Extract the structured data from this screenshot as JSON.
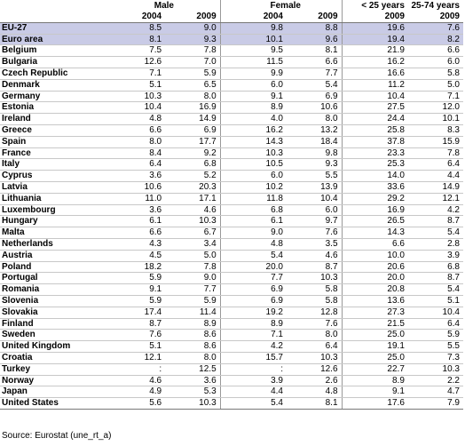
{
  "header": {
    "groups": [
      "Male",
      "Female",
      "< 25 years",
      "25-74 years"
    ],
    "years": [
      "2004",
      "2009",
      "2004",
      "2009",
      "2009",
      "2009"
    ]
  },
  "rows": [
    {
      "country": "EU-27",
      "m2004": "8.5",
      "m2009": "9.0",
      "f2004": "9.8",
      "f2009": "8.8",
      "y25": "19.6",
      "y2574": "7.6"
    },
    {
      "country": "Euro area",
      "m2004": "8.1",
      "m2009": "9.3",
      "f2004": "10.1",
      "f2009": "9.6",
      "y25": "19.4",
      "y2574": "8.2"
    },
    {
      "country": "Belgium",
      "m2004": "7.5",
      "m2009": "7.8",
      "f2004": "9.5",
      "f2009": "8.1",
      "y25": "21.9",
      "y2574": "6.6"
    },
    {
      "country": "Bulgaria",
      "m2004": "12.6",
      "m2009": "7.0",
      "f2004": "11.5",
      "f2009": "6.6",
      "y25": "16.2",
      "y2574": "6.0"
    },
    {
      "country": "Czech Republic",
      "m2004": "7.1",
      "m2009": "5.9",
      "f2004": "9.9",
      "f2009": "7.7",
      "y25": "16.6",
      "y2574": "5.8"
    },
    {
      "country": "Denmark",
      "m2004": "5.1",
      "m2009": "6.5",
      "f2004": "6.0",
      "f2009": "5.4",
      "y25": "11.2",
      "y2574": "5.0"
    },
    {
      "country": "Germany",
      "m2004": "10.3",
      "m2009": "8.0",
      "f2004": "9.1",
      "f2009": "6.9",
      "y25": "10.4",
      "y2574": "7.1"
    },
    {
      "country": "Estonia",
      "m2004": "10.4",
      "m2009": "16.9",
      "f2004": "8.9",
      "f2009": "10.6",
      "y25": "27.5",
      "y2574": "12.0"
    },
    {
      "country": "Ireland",
      "m2004": "4.8",
      "m2009": "14.9",
      "f2004": "4.0",
      "f2009": "8.0",
      "y25": "24.4",
      "y2574": "10.1"
    },
    {
      "country": "Greece",
      "m2004": "6.6",
      "m2009": "6.9",
      "f2004": "16.2",
      "f2009": "13.2",
      "y25": "25.8",
      "y2574": "8.3"
    },
    {
      "country": "Spain",
      "m2004": "8.0",
      "m2009": "17.7",
      "f2004": "14.3",
      "f2009": "18.4",
      "y25": "37.8",
      "y2574": "15.9"
    },
    {
      "country": "France",
      "m2004": "8.4",
      "m2009": "9.2",
      "f2004": "10.3",
      "f2009": "9.8",
      "y25": "23.3",
      "y2574": "7.8"
    },
    {
      "country": "Italy",
      "m2004": "6.4",
      "m2009": "6.8",
      "f2004": "10.5",
      "f2009": "9.3",
      "y25": "25.3",
      "y2574": "6.4"
    },
    {
      "country": "Cyprus",
      "m2004": "3.6",
      "m2009": "5.2",
      "f2004": "6.0",
      "f2009": "5.5",
      "y25": "14.0",
      "y2574": "4.4"
    },
    {
      "country": "Latvia",
      "m2004": "10.6",
      "m2009": "20.3",
      "f2004": "10.2",
      "f2009": "13.9",
      "y25": "33.6",
      "y2574": "14.9"
    },
    {
      "country": "Lithuania",
      "m2004": "11.0",
      "m2009": "17.1",
      "f2004": "11.8",
      "f2009": "10.4",
      "y25": "29.2",
      "y2574": "12.1"
    },
    {
      "country": "Luxembourg",
      "m2004": "3.6",
      "m2009": "4.6",
      "f2004": "6.8",
      "f2009": "6.0",
      "y25": "16.9",
      "y2574": "4.2"
    },
    {
      "country": "Hungary",
      "m2004": "6.1",
      "m2009": "10.3",
      "f2004": "6.1",
      "f2009": "9.7",
      "y25": "26.5",
      "y2574": "8.7"
    },
    {
      "country": "Malta",
      "m2004": "6.6",
      "m2009": "6.7",
      "f2004": "9.0",
      "f2009": "7.6",
      "y25": "14.3",
      "y2574": "5.4"
    },
    {
      "country": "Netherlands",
      "m2004": "4.3",
      "m2009": "3.4",
      "f2004": "4.8",
      "f2009": "3.5",
      "y25": "6.6",
      "y2574": "2.8"
    },
    {
      "country": "Austria",
      "m2004": "4.5",
      "m2009": "5.0",
      "f2004": "5.4",
      "f2009": "4.6",
      "y25": "10.0",
      "y2574": "3.9"
    },
    {
      "country": "Poland",
      "m2004": "18.2",
      "m2009": "7.8",
      "f2004": "20.0",
      "f2009": "8.7",
      "y25": "20.6",
      "y2574": "6.8"
    },
    {
      "country": "Portugal",
      "m2004": "5.9",
      "m2009": "9.0",
      "f2004": "7.7",
      "f2009": "10.3",
      "y25": "20.0",
      "y2574": "8.7"
    },
    {
      "country": "Romania",
      "m2004": "9.1",
      "m2009": "7.7",
      "f2004": "6.9",
      "f2009": "5.8",
      "y25": "20.8",
      "y2574": "5.4"
    },
    {
      "country": "Slovenia",
      "m2004": "5.9",
      "m2009": "5.9",
      "f2004": "6.9",
      "f2009": "5.8",
      "y25": "13.6",
      "y2574": "5.1"
    },
    {
      "country": "Slovakia",
      "m2004": "17.4",
      "m2009": "11.4",
      "f2004": "19.2",
      "f2009": "12.8",
      "y25": "27.3",
      "y2574": "10.4"
    },
    {
      "country": "Finland",
      "m2004": "8.7",
      "m2009": "8.9",
      "f2004": "8.9",
      "f2009": "7.6",
      "y25": "21.5",
      "y2574": "6.4"
    },
    {
      "country": "Sweden",
      "m2004": "7.6",
      "m2009": "8.6",
      "f2004": "7.1",
      "f2009": "8.0",
      "y25": "25.0",
      "y2574": "5.9"
    },
    {
      "country": "United Kingdom",
      "m2004": "5.1",
      "m2009": "8.6",
      "f2004": "4.2",
      "f2009": "6.4",
      "y25": "19.1",
      "y2574": "5.5"
    },
    {
      "country": "Croatia",
      "m2004": "12.1",
      "m2009": "8.0",
      "f2004": "15.7",
      "f2009": "10.3",
      "y25": "25.0",
      "y2574": "7.3"
    },
    {
      "country": "Turkey",
      "m2004": ":",
      "m2009": "12.5",
      "f2004": ":",
      "f2009": "12.6",
      "y25": "22.7",
      "y2574": "10.3"
    },
    {
      "country": "Norway",
      "m2004": "4.6",
      "m2009": "3.6",
      "f2004": "3.9",
      "f2009": "2.6",
      "y25": "8.9",
      "y2574": "2.2"
    },
    {
      "country": "Japan",
      "m2004": "4.9",
      "m2009": "5.3",
      "f2004": "4.4",
      "f2009": "4.8",
      "y25": "9.1",
      "y2574": "4.7"
    },
    {
      "country": "United States",
      "m2004": "5.6",
      "m2009": "10.3",
      "f2004": "5.4",
      "f2009": "8.1",
      "y25": "17.6",
      "y2574": "7.9"
    }
  ],
  "highlight_color": "#c9cbe6",
  "source": "Source: Eurostat (une_rt_a)"
}
